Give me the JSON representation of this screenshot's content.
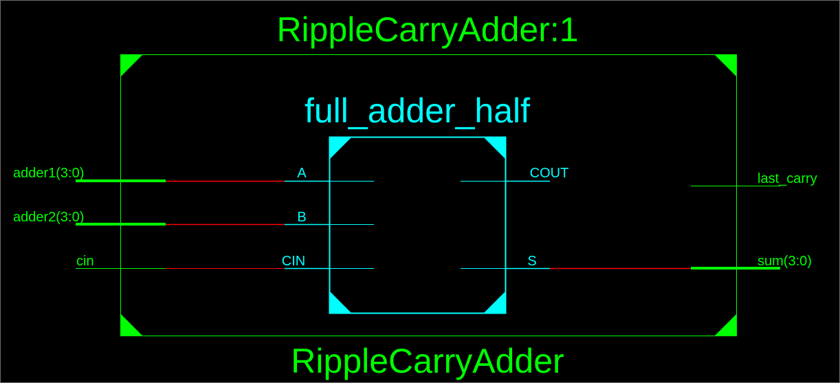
{
  "instance_title": "RippleCarryAdder:1",
  "module_name": "RippleCarryAdder",
  "submodule": {
    "name": "full_adder_half",
    "input_pins": [
      "A",
      "B",
      "CIN"
    ],
    "output_pins": [
      "COUT",
      "S"
    ]
  },
  "ports": {
    "inputs": [
      "adder1(3:0)",
      "adder2(3:0)",
      "cin"
    ],
    "outputs": [
      "last_carry",
      "sum(3:0)"
    ]
  },
  "colors": {
    "background": "#000000",
    "outer_block": "#00ff00",
    "inner_block": "#00ffff",
    "net_highlight": "#ff0000",
    "bus": "#00ff00",
    "frame": "#6e6e6e"
  }
}
